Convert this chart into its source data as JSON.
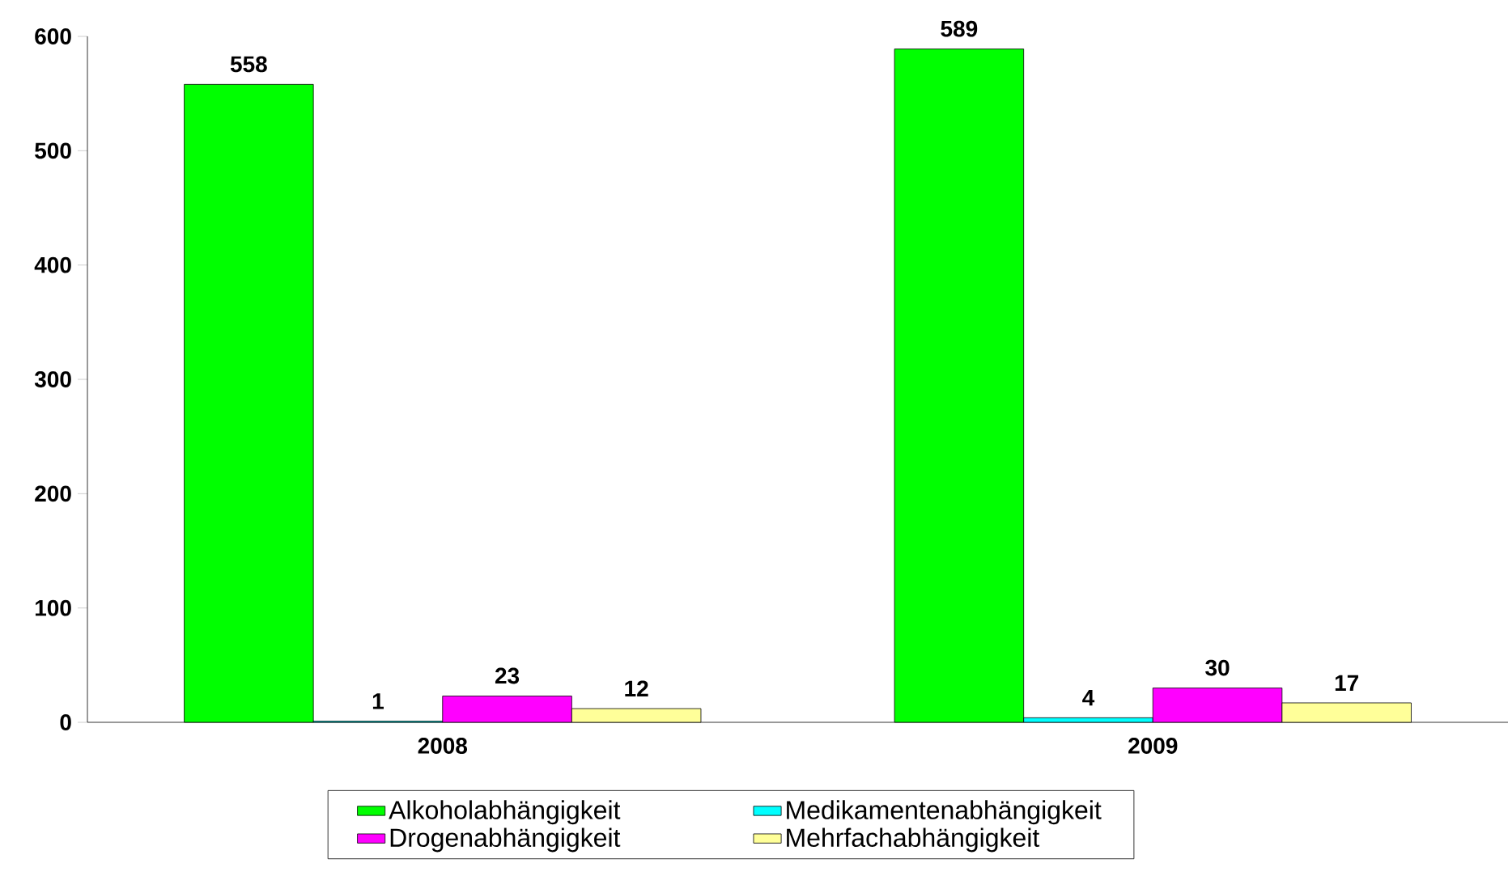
{
  "chart_data": {
    "type": "bar",
    "categories": [
      "2008",
      "2009"
    ],
    "series": [
      {
        "name": "Alkoholabhängigkeit",
        "color": "#00ff00",
        "values": [
          558,
          589
        ]
      },
      {
        "name": "Medikamentenabhängigkeit",
        "color": "#00ffff",
        "values": [
          1,
          4
        ]
      },
      {
        "name": "Drogenabhängigkeit",
        "color": "#ff00ff",
        "values": [
          23,
          30
        ]
      },
      {
        "name": "Mehrfachabhängigkeit",
        "color": "#ffff99",
        "values": [
          12,
          17
        ]
      }
    ],
    "ylim": [
      0,
      600
    ],
    "yticks": [
      0,
      100,
      200,
      300,
      400,
      500,
      600
    ],
    "data_labels": true,
    "legend": "bottom"
  }
}
